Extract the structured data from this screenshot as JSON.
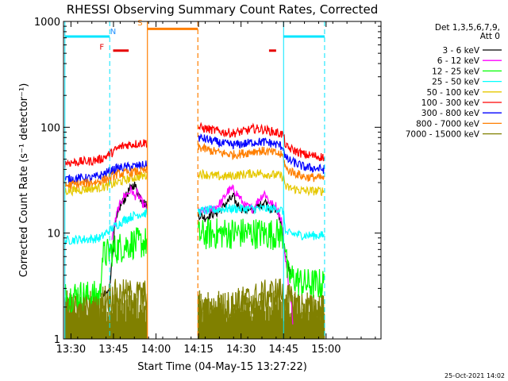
{
  "chart_data": {
    "type": "line",
    "title": "RHESSI Observing Summary Count Rates, Corrected",
    "xlabel": "Start Time (04-May-15 13:27:22)",
    "ylabel": "Corrected Count Rate (s⁻¹ detector⁻¹)",
    "yscale": "log",
    "xlim_minutes": [
      0,
      112
    ],
    "ylim": [
      1,
      1000
    ],
    "x_ticks": [
      "13:30",
      "13:45",
      "14:00",
      "14:15",
      "14:30",
      "14:45",
      "15:00"
    ],
    "x_tick_minutes": [
      2.63,
      17.63,
      32.63,
      47.63,
      62.63,
      77.63,
      92.63
    ],
    "y_ticks": [
      1,
      10,
      100,
      1000
    ],
    "y_tick_labels": [
      "1",
      "10",
      "100",
      "1000"
    ],
    "legend_header": [
      "Det 1,3,5,6,7,9,",
      "Att 0"
    ],
    "legend_position": "right",
    "timestamp": "25-Oct-2021 14:02",
    "flags": [
      {
        "label": "N",
        "color": "#1e90ff"
      },
      {
        "label": "F",
        "color": "#e60000"
      },
      {
        "label": "S",
        "color": "#ff7f00"
      }
    ],
    "segments": [
      [
        0.5,
        29.5
      ],
      [
        47.5,
        111.5
      ]
    ],
    "series": [
      {
        "name": "3 - 6 keV",
        "color": "#000000",
        "seg1": [
          [
            0,
            null
          ],
          [
            13,
            null
          ],
          [
            13.5,
            2.5
          ],
          [
            16,
            2.8
          ],
          [
            17,
            5
          ],
          [
            18,
            11
          ],
          [
            20,
            18
          ],
          [
            22,
            22
          ],
          [
            23,
            25
          ],
          [
            24,
            27
          ],
          [
            25,
            29
          ],
          [
            26,
            25
          ],
          [
            27,
            22
          ],
          [
            28,
            20
          ],
          [
            29.5,
            18
          ]
        ],
        "seg2": [
          [
            47.5,
            15
          ],
          [
            50,
            14
          ],
          [
            52,
            15
          ],
          [
            55,
            16
          ],
          [
            58,
            20
          ],
          [
            60,
            22
          ],
          [
            61,
            19
          ],
          [
            63,
            17
          ],
          [
            66,
            16
          ],
          [
            69,
            18
          ],
          [
            71,
            20
          ],
          [
            73,
            17
          ],
          [
            75,
            17
          ],
          [
            77,
            12
          ],
          [
            78,
            7
          ],
          [
            79,
            5
          ],
          [
            80.5,
            4
          ],
          [
            81,
            null
          ]
        ]
      },
      {
        "name": "6 - 12 keV",
        "color": "#ff00ff",
        "seg1": [
          [
            0,
            null
          ],
          [
            16.5,
            null
          ],
          [
            17,
            9
          ],
          [
            19,
            16
          ],
          [
            21,
            22
          ],
          [
            23,
            24
          ],
          [
            24,
            26
          ],
          [
            25,
            22
          ],
          [
            26,
            24
          ],
          [
            27,
            21
          ],
          [
            28,
            19
          ],
          [
            29.5,
            17
          ]
        ],
        "seg2": [
          [
            47.5,
            16
          ],
          [
            50,
            16
          ],
          [
            53,
            17
          ],
          [
            56,
            20
          ],
          [
            58,
            25
          ],
          [
            60,
            26
          ],
          [
            62,
            22
          ],
          [
            64,
            18
          ],
          [
            67,
            17
          ],
          [
            69,
            21
          ],
          [
            71,
            24
          ],
          [
            73,
            19
          ],
          [
            75,
            18
          ],
          [
            77,
            13
          ],
          [
            78,
            7
          ],
          [
            79,
            4
          ],
          [
            80.5,
            2
          ],
          [
            81,
            1.2
          ],
          [
            81.5,
            null
          ]
        ]
      },
      {
        "name": "12 - 25 keV",
        "color": "#00ff00",
        "seg1": [
          [
            0,
            2.5
          ],
          [
            5,
            2.6
          ],
          [
            10,
            2.5
          ],
          [
            13,
            2.6
          ],
          [
            13.5,
            6
          ],
          [
            16,
            6.5
          ],
          [
            18,
            7
          ],
          [
            21,
            7.5
          ],
          [
            24,
            8
          ],
          [
            27,
            8
          ],
          [
            29.5,
            8.2
          ]
        ],
        "seg2": [
          [
            47.5,
            9.5
          ],
          [
            52,
            9.8
          ],
          [
            57,
            10
          ],
          [
            62,
            10
          ],
          [
            67,
            10
          ],
          [
            72,
            9.8
          ],
          [
            76,
            9.8
          ],
          [
            78,
            9.5
          ],
          [
            79,
            4
          ],
          [
            85,
            3.3
          ],
          [
            90,
            3.3
          ],
          [
            92,
            3.3
          ]
        ]
      },
      {
        "name": "25 - 50 keV",
        "color": "#00ffff",
        "seg1": [
          [
            0,
            8.5
          ],
          [
            5,
            8.7
          ],
          [
            10,
            8.8
          ],
          [
            13,
            9
          ],
          [
            15,
            10
          ],
          [
            17,
            11
          ],
          [
            19,
            12
          ],
          [
            21,
            13
          ],
          [
            23,
            14
          ],
          [
            26,
            15
          ],
          [
            29.5,
            15.5
          ]
        ],
        "seg2": [
          [
            47.5,
            16
          ],
          [
            52,
            16.5
          ],
          [
            57,
            17
          ],
          [
            62,
            17
          ],
          [
            67,
            17
          ],
          [
            72,
            17
          ],
          [
            76,
            17
          ],
          [
            77.5,
            16
          ],
          [
            78.5,
            10
          ],
          [
            85,
            9.5
          ],
          [
            92,
            9.5
          ]
        ]
      },
      {
        "name": "50 - 100 keV",
        "color": "#e6c800",
        "seg1": [
          [
            0,
            25
          ],
          [
            5,
            25.5
          ],
          [
            10,
            26.5
          ],
          [
            13,
            27
          ],
          [
            16,
            28
          ],
          [
            19,
            30
          ],
          [
            22,
            32
          ],
          [
            26,
            34
          ],
          [
            29.5,
            35
          ]
        ],
        "seg2": [
          [
            47.5,
            37
          ],
          [
            52,
            35
          ],
          [
            56,
            34
          ],
          [
            60,
            35
          ],
          [
            64,
            36
          ],
          [
            68,
            37
          ],
          [
            72,
            36
          ],
          [
            76,
            35
          ],
          [
            77.5,
            34
          ],
          [
            78.5,
            27
          ],
          [
            85,
            25
          ],
          [
            92,
            25
          ]
        ]
      },
      {
        "name": "100 - 300 keV",
        "color": "#ff0000",
        "seg1": [
          [
            0,
            46
          ],
          [
            5,
            47
          ],
          [
            10,
            48
          ],
          [
            13,
            50
          ],
          [
            16,
            55
          ],
          [
            18,
            60
          ],
          [
            20,
            65
          ],
          [
            22,
            68
          ],
          [
            26,
            70
          ],
          [
            29.5,
            72
          ]
        ],
        "seg2": [
          [
            47.5,
            100
          ],
          [
            52,
            95
          ],
          [
            56,
            90
          ],
          [
            60,
            88
          ],
          [
            64,
            92
          ],
          [
            67,
            97
          ],
          [
            70,
            96
          ],
          [
            73,
            92
          ],
          [
            76,
            88
          ],
          [
            77.5,
            85
          ],
          [
            78.5,
            65
          ],
          [
            85,
            55
          ],
          [
            92,
            52
          ]
        ]
      },
      {
        "name": "300 - 800 keV",
        "color": "#0000ff",
        "seg1": [
          [
            0,
            32
          ],
          [
            5,
            33
          ],
          [
            10,
            33
          ],
          [
            13,
            35
          ],
          [
            16,
            38
          ],
          [
            19,
            41
          ],
          [
            22,
            42
          ],
          [
            26,
            43
          ],
          [
            29.5,
            44
          ]
        ],
        "seg2": [
          [
            47.5,
            80
          ],
          [
            52,
            75
          ],
          [
            56,
            70
          ],
          [
            60,
            68
          ],
          [
            64,
            70
          ],
          [
            68,
            73
          ],
          [
            72,
            72
          ],
          [
            76,
            68
          ],
          [
            77.5,
            65
          ],
          [
            78.5,
            50
          ],
          [
            85,
            42
          ],
          [
            92,
            40
          ]
        ]
      },
      {
        "name": "800 - 7000 keV",
        "color": "#ff7f00",
        "seg1": [
          [
            0,
            28
          ],
          [
            5,
            29
          ],
          [
            10,
            30
          ],
          [
            13,
            31
          ],
          [
            16,
            33
          ],
          [
            19,
            36
          ],
          [
            22,
            37
          ],
          [
            26,
            38
          ],
          [
            29.5,
            39
          ]
        ],
        "seg2": [
          [
            47.5,
            65
          ],
          [
            52,
            60
          ],
          [
            56,
            57
          ],
          [
            60,
            55
          ],
          [
            64,
            57
          ],
          [
            68,
            60
          ],
          [
            72,
            59
          ],
          [
            76,
            56
          ],
          [
            77.5,
            53
          ],
          [
            78.5,
            40
          ],
          [
            85,
            34
          ],
          [
            92,
            33
          ]
        ]
      },
      {
        "name": "7000 - 15000 keV",
        "color": "#808000",
        "seg1": [
          [
            0,
            1.8
          ],
          [
            5,
            1.9
          ],
          [
            10,
            1.8
          ],
          [
            13,
            1.9
          ],
          [
            14,
            2.4
          ],
          [
            18,
            2.6
          ],
          [
            22,
            2.6
          ],
          [
            26,
            2.6
          ],
          [
            29.5,
            2.6
          ]
        ],
        "seg2": [
          [
            47.5,
            1.8
          ],
          [
            52,
            1.8
          ],
          [
            57,
            2.0
          ],
          [
            62,
            2.2
          ],
          [
            67,
            2.4
          ],
          [
            72,
            2.6
          ],
          [
            76,
            2.8
          ],
          [
            78,
            2.5
          ],
          [
            85,
            1.9
          ],
          [
            92,
            1.9
          ]
        ]
      }
    ],
    "band_curves": [
      {
        "color": "#808000",
        "from": 1,
        "seg1_to": [
          [
            0,
            1.6
          ],
          [
            29.5,
            1.6
          ]
        ],
        "seg2_to": [
          [
            47.5,
            1.6
          ],
          [
            92,
            1.6
          ]
        ]
      }
    ],
    "markers": {
      "cyan_solid": [
        0.5,
        77.63
      ],
      "cyan_dashed": [
        16.3,
        92.1
      ],
      "orange_solid": 29.6,
      "orange_dashed": 47.4,
      "cyan_bars": [
        {
          "x": [
            0.5,
            16.3
          ],
          "y": 720
        },
        {
          "x": [
            77.63,
            92.1
          ],
          "y": 720
        }
      ],
      "orange_bar": {
        "x": [
          29.6,
          47.4
        ],
        "y": 850
      },
      "red_bars": [
        {
          "x": [
            17.5,
            23
          ],
          "y": 530
        },
        {
          "x": [
            72.5,
            75
          ],
          "y": 530
        }
      ]
    }
  }
}
